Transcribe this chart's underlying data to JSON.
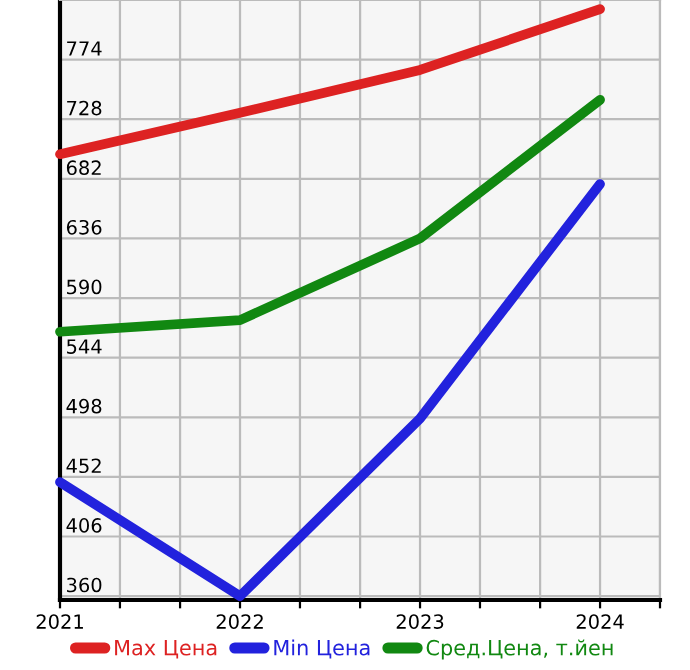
{
  "chart_data": {
    "type": "line",
    "x": [
      2021,
      2022,
      2023,
      2024
    ],
    "series": [
      {
        "name": "Max Цена",
        "color": "#dd2222",
        "values": [
          701,
          733,
          766,
          813
        ]
      },
      {
        "name": "Min Цена",
        "color": "#2222dd",
        "values": [
          448,
          360,
          497,
          678
        ]
      },
      {
        "name": "Сред.Цена, т.йен",
        "color": "#118811",
        "values": [
          564,
          573,
          636,
          743
        ]
      }
    ],
    "xlim": [
      2021,
      2024.333
    ],
    "xticks": [
      2021,
      {
        "value": 2021.333,
        "label": null
      },
      {
        "value": 2021.667,
        "label": null
      },
      2022,
      {
        "value": 2022.333,
        "label": null
      },
      {
        "value": 2022.667,
        "label": null
      },
      2023,
      {
        "value": 2023.333,
        "label": null
      },
      {
        "value": 2023.667,
        "label": null
      },
      2024,
      {
        "value": 2024.333,
        "label": null
      }
    ],
    "ylim": [
      357,
      820
    ],
    "yticks": [
      360,
      406,
      452,
      498,
      544,
      590,
      636,
      682,
      728,
      774
    ],
    "grid": true,
    "legend": "bottom",
    "marker": "none",
    "line_style": "solid"
  }
}
